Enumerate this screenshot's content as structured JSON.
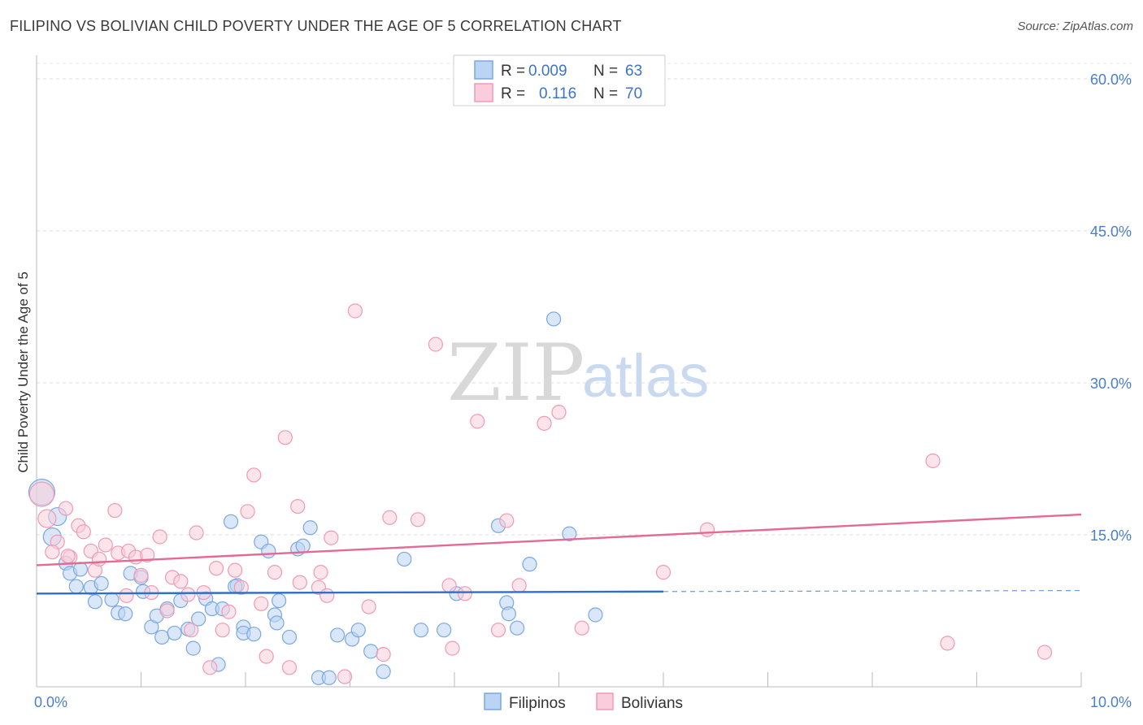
{
  "header": {
    "title": "FILIPINO VS BOLIVIAN CHILD POVERTY UNDER THE AGE OF 5 CORRELATION CHART",
    "source": "Source: ZipAtlas.com"
  },
  "watermark": {
    "zip": "ZIP",
    "atlas": "atlas"
  },
  "legend": {
    "rows": [
      {
        "r_label": "R =",
        "r_value": "0.009",
        "n_label": "N =",
        "n_value": "63",
        "color": "#a9c8f0"
      },
      {
        "r_label": "R =",
        "r_value": "0.116",
        "n_label": "N =",
        "n_value": "70",
        "color": "#f5b8cb"
      }
    ]
  },
  "bottom_legend": {
    "filipinos": "Filipinos",
    "bolivians": "Bolivians"
  },
  "chart_data": {
    "type": "scatter",
    "ylabel": "Child Poverty Under the Age of 5",
    "xlim": [
      0,
      10
    ],
    "ylim": [
      0,
      60
    ],
    "x_tick_labels": [
      "0.0%",
      "10.0%"
    ],
    "y_tick_values": [
      15,
      30,
      45,
      60
    ],
    "y_tick_labels": [
      "15.0%",
      "30.0%",
      "45.0%",
      "60.0%"
    ],
    "grid": "horizontal dashed",
    "legend_position": "top-center",
    "series": [
      {
        "name": "Filipinos",
        "color": "#7aa8e0",
        "fill": "#bcd4f3",
        "trend": {
          "x": [
            0,
            6.0
          ],
          "y": [
            9.2,
            9.4
          ],
          "dashed_to": [
            10.0,
            9.5
          ],
          "color": "#2f6fc8"
        },
        "points": [
          [
            0.05,
            19.2
          ],
          [
            0.2,
            16.8
          ],
          [
            0.15,
            14.8
          ],
          [
            0.28,
            12.2
          ],
          [
            0.32,
            11.2
          ],
          [
            0.42,
            11.6
          ],
          [
            0.38,
            9.9
          ],
          [
            0.52,
            9.8
          ],
          [
            0.62,
            10.2
          ],
          [
            0.56,
            8.4
          ],
          [
            0.72,
            8.6
          ],
          [
            0.78,
            7.3
          ],
          [
            0.85,
            7.2
          ],
          [
            0.9,
            11.2
          ],
          [
            1.0,
            10.8
          ],
          [
            1.02,
            9.4
          ],
          [
            1.1,
            5.9
          ],
          [
            1.15,
            7.0
          ],
          [
            1.2,
            4.9
          ],
          [
            1.25,
            7.7
          ],
          [
            1.32,
            5.3
          ],
          [
            1.38,
            8.5
          ],
          [
            1.45,
            5.7
          ],
          [
            1.5,
            3.8
          ],
          [
            1.55,
            6.7
          ],
          [
            1.62,
            8.7
          ],
          [
            1.68,
            7.7
          ],
          [
            1.74,
            2.2
          ],
          [
            1.78,
            7.7
          ],
          [
            1.86,
            16.3
          ],
          [
            1.92,
            10.0
          ],
          [
            1.98,
            5.9
          ],
          [
            1.98,
            5.3
          ],
          [
            2.08,
            5.2
          ],
          [
            2.15,
            14.3
          ],
          [
            2.22,
            13.4
          ],
          [
            2.28,
            7.1
          ],
          [
            2.32,
            8.5
          ],
          [
            2.42,
            4.9
          ],
          [
            2.5,
            13.6
          ],
          [
            2.55,
            13.9
          ],
          [
            2.62,
            15.7
          ],
          [
            2.7,
            0.9
          ],
          [
            2.8,
            0.9
          ],
          [
            2.88,
            5.1
          ],
          [
            3.02,
            4.7
          ],
          [
            3.08,
            5.6
          ],
          [
            3.2,
            3.5
          ],
          [
            3.32,
            1.5
          ],
          [
            3.52,
            12.6
          ],
          [
            3.68,
            5.6
          ],
          [
            3.9,
            5.6
          ],
          [
            4.02,
            9.2
          ],
          [
            4.42,
            15.9
          ],
          [
            4.5,
            8.3
          ],
          [
            4.52,
            7.2
          ],
          [
            4.6,
            5.8
          ],
          [
            4.72,
            12.1
          ],
          [
            4.95,
            36.3
          ],
          [
            5.1,
            15.1
          ],
          [
            5.35,
            7.1
          ],
          [
            2.3,
            6.3
          ],
          [
            1.9,
            9.9
          ]
        ],
        "point_sizes": {
          "0": 16,
          "1": 11,
          "2": 11
        }
      },
      {
        "name": "Bolivians",
        "color": "#f09ab5",
        "fill": "#f9cddb",
        "trend": {
          "x": [
            0,
            10.0
          ],
          "y": [
            12.0,
            17.0
          ],
          "color": "#e46a93"
        },
        "points": [
          [
            0.05,
            19.0
          ],
          [
            0.1,
            16.6
          ],
          [
            0.2,
            14.3
          ],
          [
            0.15,
            13.3
          ],
          [
            0.28,
            17.6
          ],
          [
            0.32,
            12.8
          ],
          [
            0.4,
            15.9
          ],
          [
            0.45,
            15.3
          ],
          [
            0.52,
            13.4
          ],
          [
            0.56,
            11.5
          ],
          [
            0.6,
            12.6
          ],
          [
            0.66,
            14.0
          ],
          [
            0.75,
            17.4
          ],
          [
            0.78,
            13.2
          ],
          [
            0.86,
            9.0
          ],
          [
            0.88,
            13.4
          ],
          [
            0.95,
            12.8
          ],
          [
            1.0,
            11.0
          ],
          [
            1.1,
            9.3
          ],
          [
            1.18,
            14.8
          ],
          [
            1.25,
            7.5
          ],
          [
            1.3,
            10.8
          ],
          [
            1.38,
            10.4
          ],
          [
            1.45,
            9.1
          ],
          [
            1.48,
            5.6
          ],
          [
            1.53,
            15.2
          ],
          [
            1.6,
            9.3
          ],
          [
            1.66,
            1.9
          ],
          [
            1.72,
            11.7
          ],
          [
            1.78,
            5.6
          ],
          [
            1.84,
            7.4
          ],
          [
            1.9,
            11.5
          ],
          [
            1.96,
            9.8
          ],
          [
            2.02,
            17.3
          ],
          [
            2.08,
            20.9
          ],
          [
            2.15,
            8.2
          ],
          [
            2.2,
            3.0
          ],
          [
            2.28,
            11.3
          ],
          [
            2.38,
            24.6
          ],
          [
            2.42,
            1.9
          ],
          [
            2.5,
            17.8
          ],
          [
            2.52,
            10.3
          ],
          [
            2.7,
            9.8
          ],
          [
            2.72,
            11.3
          ],
          [
            2.78,
            9.0
          ],
          [
            2.82,
            14.7
          ],
          [
            2.95,
            1.0
          ],
          [
            3.05,
            37.1
          ],
          [
            3.18,
            7.9
          ],
          [
            3.32,
            3.2
          ],
          [
            3.38,
            16.7
          ],
          [
            3.65,
            16.5
          ],
          [
            3.82,
            33.8
          ],
          [
            3.95,
            10.0
          ],
          [
            3.98,
            3.8
          ],
          [
            4.1,
            9.2
          ],
          [
            4.22,
            26.2
          ],
          [
            4.42,
            5.6
          ],
          [
            4.5,
            16.4
          ],
          [
            4.62,
            10.0
          ],
          [
            4.86,
            26.0
          ],
          [
            5.0,
            27.1
          ],
          [
            5.22,
            5.8
          ],
          [
            6.0,
            11.3
          ],
          [
            6.42,
            15.5
          ],
          [
            8.58,
            22.3
          ],
          [
            8.72,
            4.3
          ],
          [
            9.65,
            3.4
          ],
          [
            0.3,
            12.9
          ],
          [
            1.06,
            13.0
          ]
        ],
        "point_sizes": {
          "0": 15,
          "1": 11
        }
      }
    ]
  }
}
